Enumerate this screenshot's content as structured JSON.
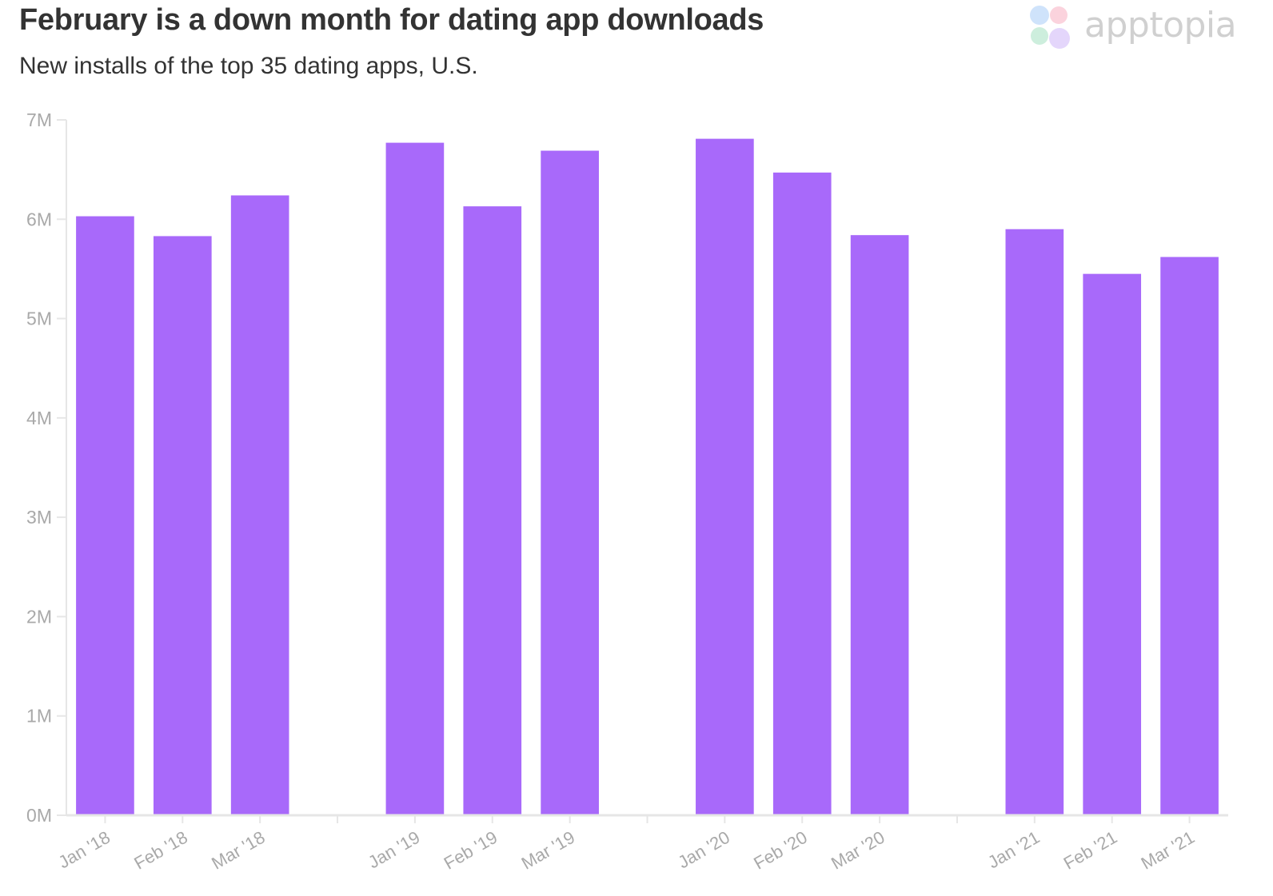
{
  "header": {
    "title": "February is a down month for dating app downloads",
    "subtitle": "New installs of the top 35 dating apps, U.S."
  },
  "logo": {
    "text": "apptopia",
    "petal_colors": [
      "#cfe3fb",
      "#fbd3dd",
      "#cdeedd",
      "#e4d6fb"
    ]
  },
  "colors": {
    "bar": "#a869fa",
    "tick_label": "#a9a9a9",
    "axis": "#e6e6e6"
  },
  "chart_data": {
    "type": "bar",
    "categories": [
      "Jan '18",
      "Feb '18",
      "Mar '18",
      "",
      "Jan '19",
      "Feb '19",
      "Mar '19",
      "",
      "Jan '20",
      "Feb '20",
      "Mar '20",
      "",
      "Jan '21",
      "Feb '21",
      "Mar '21"
    ],
    "values": [
      6.03,
      5.83,
      6.24,
      null,
      6.77,
      6.13,
      6.69,
      null,
      6.81,
      6.47,
      5.84,
      null,
      5.9,
      5.45,
      5.62
    ],
    "unit": "M",
    "ylim": [
      0,
      7
    ],
    "yticks": [
      "0M",
      "1M",
      "2M",
      "3M",
      "4M",
      "5M",
      "6M",
      "7M"
    ],
    "grid": false,
    "legend": "none"
  }
}
